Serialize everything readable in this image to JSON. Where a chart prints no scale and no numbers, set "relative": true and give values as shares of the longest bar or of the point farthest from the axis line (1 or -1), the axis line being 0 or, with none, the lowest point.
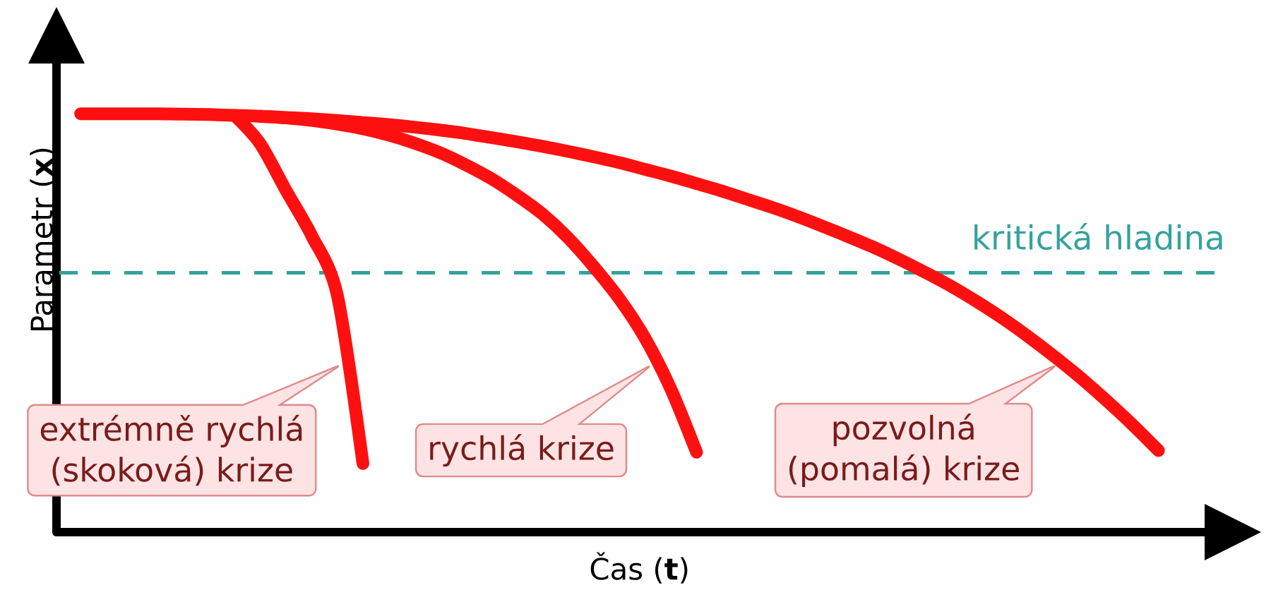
{
  "chart_data": {
    "type": "line",
    "relative": true,
    "xlabel": "Čas (**t**)",
    "ylabel": "Parametr (**x**)",
    "categories": [
      null,
      null,
      null,
      null,
      null,
      null,
      null,
      null,
      null,
      null,
      null,
      null,
      null,
      null,
      null,
      null,
      null,
      null,
      null,
      null,
      null,
      null,
      null,
      null,
      null,
      null,
      null,
      null,
      null,
      null,
      null,
      null,
      null,
      null,
      null,
      null,
      null,
      null,
      null,
      null,
      null,
      null,
      null
    ],
    "series": [
      {
        "color": "#ff1010",
        "values": [
          null,
          null,
          null,
          null,
          null,
          null,
          0.996,
          0.928,
          0.817,
          0.709,
          0.567,
          0.164,
          null,
          null,
          null,
          null,
          null,
          null,
          null,
          null,
          null,
          null,
          null,
          null,
          null,
          null,
          null,
          null,
          null,
          null,
          null,
          null,
          null,
          null,
          null,
          null,
          null,
          null,
          null,
          null,
          null,
          null,
          null
        ]
      },
      {
        "color": "#ff1010",
        "values": [
          null,
          null,
          null,
          null,
          null,
          null,
          null,
          0.994,
          0.99,
          0.984,
          0.975,
          0.964,
          0.949,
          0.93,
          0.907,
          0.878,
          0.845,
          0.805,
          0.76,
          0.703,
          0.634,
          0.557,
          0.463,
          0.342,
          0.191,
          null,
          null,
          null,
          null,
          null,
          null,
          null,
          null,
          null,
          null,
          null,
          null,
          null,
          null,
          null,
          null,
          null,
          null
        ]
      },
      {
        "color": "#ff1010",
        "values": [
          1.0,
          1.0,
          1.0,
          1.0,
          0.999,
          0.998,
          0.996,
          0.994,
          0.991,
          0.988,
          0.984,
          0.979,
          0.974,
          0.968,
          0.961,
          0.953,
          0.943,
          0.933,
          0.922,
          0.91,
          0.897,
          0.883,
          0.867,
          0.851,
          0.833,
          0.815,
          0.795,
          0.775,
          0.753,
          0.729,
          0.704,
          0.678,
          0.649,
          0.618,
          0.585,
          0.548,
          0.508,
          0.464,
          0.417,
          0.367,
          0.313,
          0.256,
          0.195
        ]
      }
    ],
    "ref_lines": [
      {
        "axis": "y",
        "value": 0.62,
        "label": "kritická hladina",
        "color": "#35a29d",
        "line_style": "dashed"
      }
    ],
    "annotations": [
      "extrémně rychlá (skoková) krize",
      "rychlá krize",
      "pozvolná (pomalá) krize"
    ]
  }
}
